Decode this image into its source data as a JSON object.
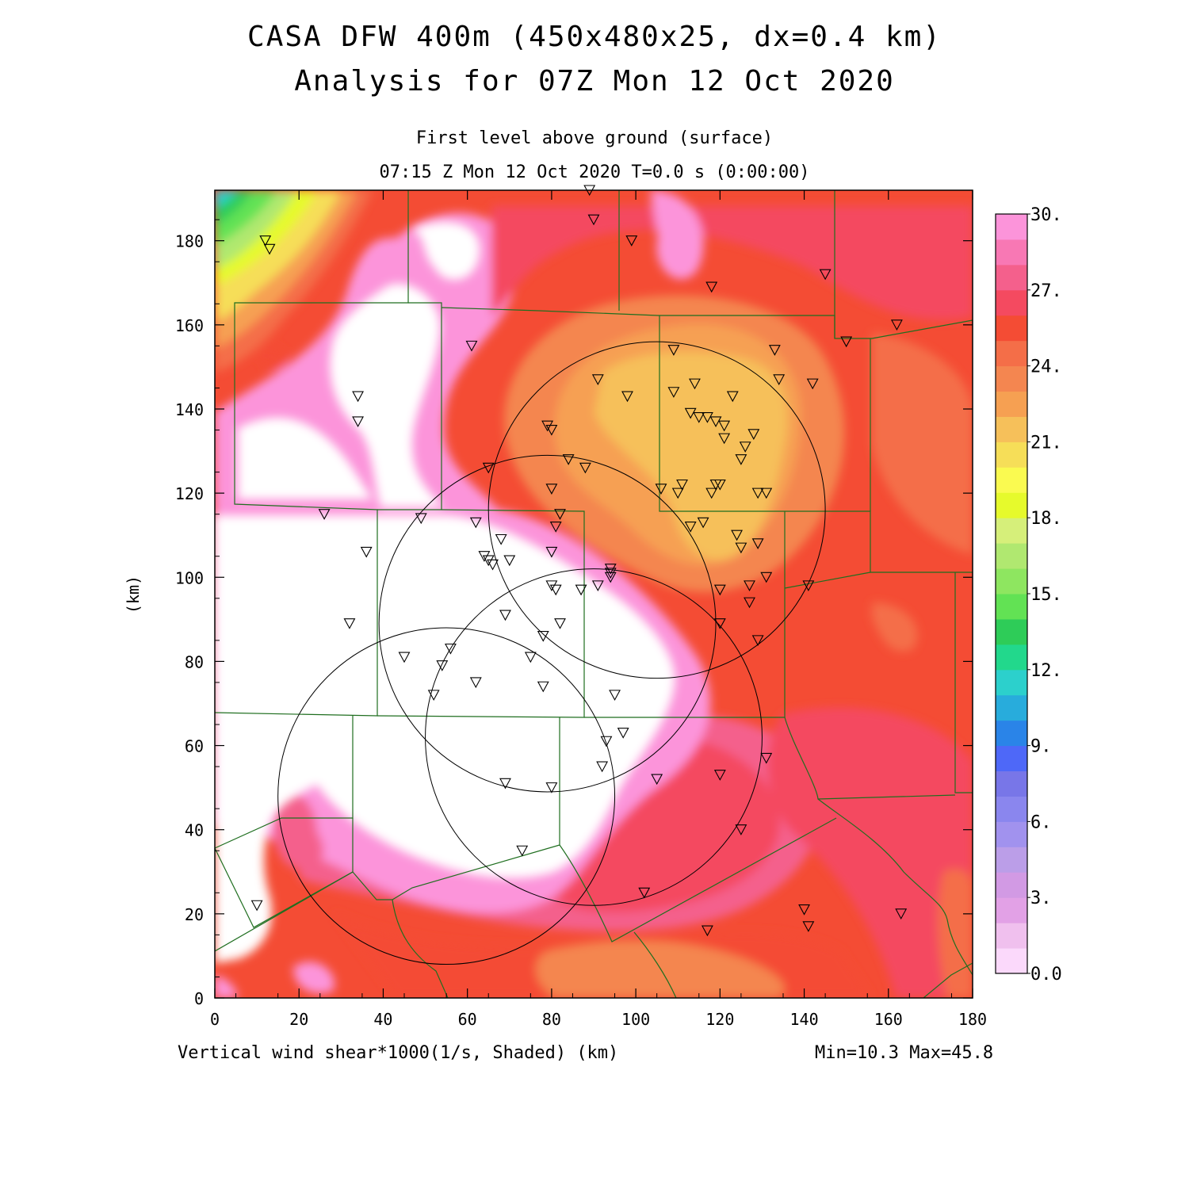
{
  "header": {
    "title_line1": "CASA DFW 400m (450x480x25, dx=0.4 km)",
    "title_line2": "Analysis for 07Z Mon 12 Oct 2020",
    "level": "First level above ground (surface)",
    "time": "07:15 Z Mon 12 Oct 2020   T=0.0 s (0:00:00)"
  },
  "footer": {
    "variable": "Vertical wind shear*1000(1/s, Shaded)  (km)",
    "minmax": "Min=10.3 Max=45.8"
  },
  "axes": {
    "ylabel": "(km)",
    "x_ticks": [
      "0",
      "20",
      "40",
      "60",
      "80",
      "100",
      "120",
      "140",
      "160",
      "180"
    ],
    "y_ticks": [
      "0",
      "20",
      "40",
      "60",
      "80",
      "100",
      "120",
      "140",
      "160",
      "180"
    ],
    "xlim": [
      0,
      180
    ],
    "ylim": [
      0,
      192
    ]
  },
  "colorbar": {
    "labels": [
      "0.0",
      "3.",
      "6.",
      "9.",
      "12.",
      "15.",
      "18.",
      "21.",
      "24.",
      "27.",
      "30."
    ],
    "colors": [
      "#fbd9fb",
      "#f0c0ee",
      "#e2a1e6",
      "#d29ae4",
      "#bb9ee8",
      "#a192ee",
      "#8a86ee",
      "#7876e8",
      "#4e68f8",
      "#2a84e8",
      "#28acdc",
      "#2cd0cc",
      "#22d88c",
      "#2ecc58",
      "#62e254",
      "#8ee660",
      "#b0e870",
      "#d6ef7a",
      "#e6fa2c",
      "#fafa50",
      "#f6de58",
      "#f6c05a",
      "#f6a052",
      "#f48650",
      "#f46e48",
      "#f44c34",
      "#f44a60",
      "#f4608c",
      "#f878b4",
      "#fc94da"
    ]
  },
  "radars": [
    {
      "cx": 105,
      "cy": 116,
      "r": 40
    },
    {
      "cx": 79,
      "cy": 89,
      "r": 40
    },
    {
      "cx": 90,
      "cy": 62,
      "r": 40
    },
    {
      "cx": 55,
      "cy": 48,
      "r": 40
    }
  ],
  "stations": [
    [
      89,
      192
    ],
    [
      90,
      185
    ],
    [
      99,
      180
    ],
    [
      12,
      180
    ],
    [
      13,
      178
    ],
    [
      118,
      169
    ],
    [
      145,
      172
    ],
    [
      162,
      160
    ],
    [
      150,
      156
    ],
    [
      61,
      155
    ],
    [
      109,
      154
    ],
    [
      133,
      154
    ],
    [
      34,
      143
    ],
    [
      34,
      137
    ],
    [
      91,
      147
    ],
    [
      98,
      143
    ],
    [
      114,
      146
    ],
    [
      134,
      147
    ],
    [
      142,
      146
    ],
    [
      109,
      144
    ],
    [
      123,
      143
    ],
    [
      113,
      139
    ],
    [
      115,
      138
    ],
    [
      117,
      138
    ],
    [
      119,
      137
    ],
    [
      121,
      136
    ],
    [
      79,
      136
    ],
    [
      80,
      135
    ],
    [
      128,
      134
    ],
    [
      126,
      131
    ],
    [
      121,
      133
    ],
    [
      125,
      128
    ],
    [
      84,
      128
    ],
    [
      88,
      126
    ],
    [
      65,
      126
    ],
    [
      80,
      121
    ],
    [
      106,
      121
    ],
    [
      111,
      122
    ],
    [
      110,
      120
    ],
    [
      118,
      120
    ],
    [
      119,
      122
    ],
    [
      120,
      122
    ],
    [
      129,
      120
    ],
    [
      131,
      120
    ],
    [
      26,
      115
    ],
    [
      49,
      114
    ],
    [
      62,
      113
    ],
    [
      82,
      115
    ],
    [
      116,
      113
    ],
    [
      81,
      112
    ],
    [
      113,
      112
    ],
    [
      124,
      110
    ],
    [
      125,
      107
    ],
    [
      129,
      108
    ],
    [
      36,
      106
    ],
    [
      80,
      106
    ],
    [
      64,
      105
    ],
    [
      65,
      104
    ],
    [
      66,
      103
    ],
    [
      70,
      104
    ],
    [
      68,
      109
    ],
    [
      94,
      102
    ],
    [
      94,
      101
    ],
    [
      94,
      100
    ],
    [
      91,
      98
    ],
    [
      80,
      98
    ],
    [
      81,
      97
    ],
    [
      87,
      97
    ],
    [
      120,
      97
    ],
    [
      127,
      98
    ],
    [
      131,
      100
    ],
    [
      141,
      98
    ],
    [
      127,
      94
    ],
    [
      69,
      91
    ],
    [
      32,
      89
    ],
    [
      82,
      89
    ],
    [
      120,
      89
    ],
    [
      78,
      86
    ],
    [
      129,
      85
    ],
    [
      45,
      81
    ],
    [
      54,
      79
    ],
    [
      56,
      83
    ],
    [
      75,
      81
    ],
    [
      62,
      75
    ],
    [
      52,
      72
    ],
    [
      78,
      74
    ],
    [
      95,
      72
    ],
    [
      97,
      63
    ],
    [
      93,
      61
    ],
    [
      131,
      57
    ],
    [
      92,
      55
    ],
    [
      120,
      53
    ],
    [
      105,
      52
    ],
    [
      69,
      51
    ],
    [
      80,
      50
    ],
    [
      125,
      40
    ],
    [
      73,
      35
    ],
    [
      10,
      22
    ],
    [
      102,
      25
    ],
    [
      140,
      21
    ],
    [
      141,
      17
    ],
    [
      117,
      16
    ],
    [
      163,
      20
    ]
  ]
}
